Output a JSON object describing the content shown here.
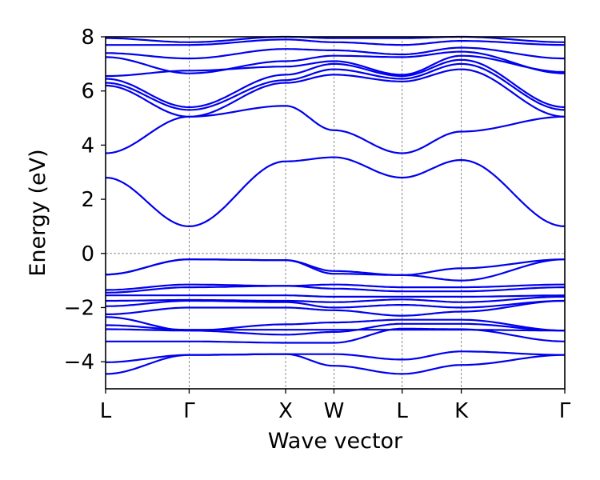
{
  "chart_data": {
    "type": "line",
    "title": "",
    "xlabel": "Wave vector",
    "ylabel": "Energy (eV)",
    "ylim": [
      -5,
      8
    ],
    "xlim": [
      0,
      5.496
    ],
    "grid": true,
    "legend": "none",
    "line_color": "#0000ee",
    "grid_color": "#808080",
    "x_ticks": [
      {
        "label": "L",
        "x": 0.0
      },
      {
        "label": "Γ",
        "x": 1.0
      },
      {
        "label": "X",
        "x": 2.155
      },
      {
        "label": "W",
        "x": 2.733
      },
      {
        "label": "L",
        "x": 3.549
      },
      {
        "label": "K",
        "x": 4.257
      },
      {
        "label": "Γ",
        "x": 5.496
      }
    ],
    "y_ticks": [
      -4,
      -2,
      0,
      2,
      4,
      6,
      8
    ],
    "fermi_level": 0,
    "x": [
      0.0,
      1.0,
      2.155,
      2.733,
      3.549,
      4.257,
      5.496
    ],
    "series": [
      {
        "values": [
          -4.45,
          -3.75,
          -3.72,
          -4.15,
          -4.45,
          -4.12,
          -3.75
        ]
      },
      {
        "values": [
          -4.02,
          -3.75,
          -3.72,
          -3.72,
          -3.92,
          -3.62,
          -3.75
        ]
      },
      {
        "values": [
          -3.25,
          -3.25,
          -3.3,
          -3.3,
          -2.78,
          -2.8,
          -3.25
        ]
      },
      {
        "values": [
          -2.8,
          -2.85,
          -3.0,
          -2.9,
          -2.6,
          -2.6,
          -2.85
        ]
      },
      {
        "values": [
          -2.65,
          -2.82,
          -2.82,
          -2.82,
          -2.82,
          -2.82,
          -2.85
        ]
      },
      {
        "values": [
          -2.35,
          -2.85,
          -2.62,
          -2.55,
          -2.45,
          -2.45,
          -2.85
        ]
      },
      {
        "values": [
          -2.25,
          -2.0,
          -2.0,
          -2.1,
          -2.3,
          -2.15,
          -1.75
        ]
      },
      {
        "values": [
          -1.95,
          -1.75,
          -1.8,
          -2.0,
          -1.9,
          -2.0,
          -1.75
        ]
      },
      {
        "values": [
          -1.75,
          -1.72,
          -1.75,
          -1.8,
          -1.7,
          -1.8,
          -1.6
        ]
      },
      {
        "values": [
          -1.55,
          -1.55,
          -1.55,
          -1.6,
          -1.6,
          -1.6,
          -1.55
        ]
      },
      {
        "values": [
          -1.45,
          -1.25,
          -1.2,
          -1.3,
          -1.4,
          -1.4,
          -1.25
        ]
      },
      {
        "values": [
          -1.35,
          -1.15,
          -1.2,
          -1.15,
          -1.25,
          -1.25,
          -1.15
        ]
      },
      {
        "values": [
          -0.78,
          -0.22,
          -0.25,
          -0.65,
          -0.8,
          -0.55,
          -0.22
        ]
      },
      {
        "values": [
          -0.78,
          -0.22,
          -0.25,
          -0.75,
          -0.8,
          -1.0,
          -0.22
        ]
      },
      {
        "values": [
          2.8,
          1.0,
          3.4,
          3.55,
          2.8,
          3.45,
          1.0
        ]
      },
      {
        "values": [
          3.7,
          5.05,
          5.45,
          4.55,
          3.7,
          4.5,
          5.05
        ]
      },
      {
        "values": [
          6.2,
          5.05,
          6.3,
          6.6,
          6.35,
          6.8,
          5.05
        ]
      },
      {
        "values": [
          6.3,
          5.3,
          6.4,
          6.8,
          6.45,
          7.0,
          5.3
        ]
      },
      {
        "values": [
          6.45,
          5.4,
          6.6,
          7.0,
          6.55,
          7.15,
          5.4
        ]
      },
      {
        "values": [
          6.55,
          6.75,
          6.9,
          7.1,
          6.6,
          7.3,
          6.7
        ]
      },
      {
        "values": [
          7.25,
          6.65,
          7.1,
          7.3,
          7.25,
          7.45,
          6.65
        ]
      },
      {
        "values": [
          7.4,
          7.2,
          7.55,
          7.5,
          7.35,
          7.6,
          7.2
        ]
      },
      {
        "values": [
          7.7,
          7.7,
          7.9,
          7.8,
          7.7,
          7.85,
          7.7
        ]
      },
      {
        "values": [
          7.95,
          7.8,
          8.0,
          7.95,
          7.95,
          8.0,
          7.8
        ]
      }
    ]
  }
}
